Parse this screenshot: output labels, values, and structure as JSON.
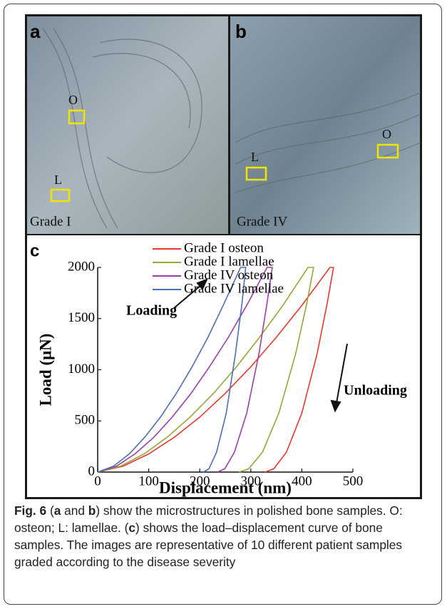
{
  "panels": {
    "a": {
      "label": "a",
      "grade": "Grade I",
      "markers": [
        "O",
        "L"
      ]
    },
    "b": {
      "label": "b",
      "grade": "Grade IV",
      "markers": [
        "L",
        "O"
      ]
    }
  },
  "chart_data": {
    "type": "line",
    "panel_label": "c",
    "xlabel": "Displacement (nm)",
    "ylabel": "Load (μN)",
    "xlim": [
      0,
      500
    ],
    "ylim": [
      0,
      2000
    ],
    "xticks": [
      0,
      100,
      200,
      300,
      400,
      500
    ],
    "yticks": [
      0,
      500,
      1000,
      1500,
      2000
    ],
    "legend": "upper left",
    "annotations": [
      "Loading",
      "Unloading"
    ],
    "series": [
      {
        "name": "Grade I osteon",
        "color": "#e8372c",
        "x": [
          0,
          50,
          100,
          150,
          200,
          250,
          300,
          350,
          400,
          455,
          462,
          450,
          430,
          400,
          370,
          345,
          328
        ],
        "values": [
          0,
          58,
          178,
          340,
          537,
          769,
          1029,
          1317,
          1629,
          2000,
          2000,
          1658,
          1159,
          577,
          196,
          32,
          0
        ]
      },
      {
        "name": "Grade I lamellae",
        "color": "#9aa53a",
        "x": [
          0,
          45,
          91,
          136,
          181,
          227,
          272,
          317,
          363,
          412,
          423,
          410,
          388,
          355,
          323,
          296,
          277
        ],
        "values": [
          0,
          58,
          178,
          340,
          537,
          769,
          1029,
          1317,
          1629,
          2000,
          2000,
          1658,
          1159,
          577,
          196,
          32,
          0
        ]
      },
      {
        "name": "Grade IV osteon",
        "color": "#9b3fa8",
        "x": [
          0,
          37,
          73,
          110,
          146,
          183,
          219,
          256,
          292,
          332,
          342,
          332,
          316,
          292,
          268,
          249,
          235
        ],
        "values": [
          0,
          58,
          178,
          340,
          537,
          769,
          1029,
          1317,
          1629,
          2000,
          2000,
          1658,
          1159,
          577,
          196,
          32,
          0
        ]
      },
      {
        "name": "Grade IV lamellae",
        "color": "#4a6fb5",
        "x": [
          0,
          31,
          62,
          92,
          123,
          154,
          185,
          216,
          246,
          280,
          290,
          283,
          270,
          252,
          233,
          218,
          207
        ],
        "values": [
          0,
          58,
          178,
          340,
          537,
          769,
          1029,
          1317,
          1629,
          2000,
          2000,
          1658,
          1159,
          577,
          196,
          32,
          0
        ]
      }
    ]
  },
  "caption": {
    "label": "Fig. 6",
    "parts": [
      " (",
      "a",
      " and ",
      "b",
      ") show the microstructures in polished bone samples. O: osteon; L: lamellae. (",
      "c",
      ") shows the load–displacement curve of bone samples. The images are representative of 10 different patient samples graded according to the disease severity"
    ]
  }
}
